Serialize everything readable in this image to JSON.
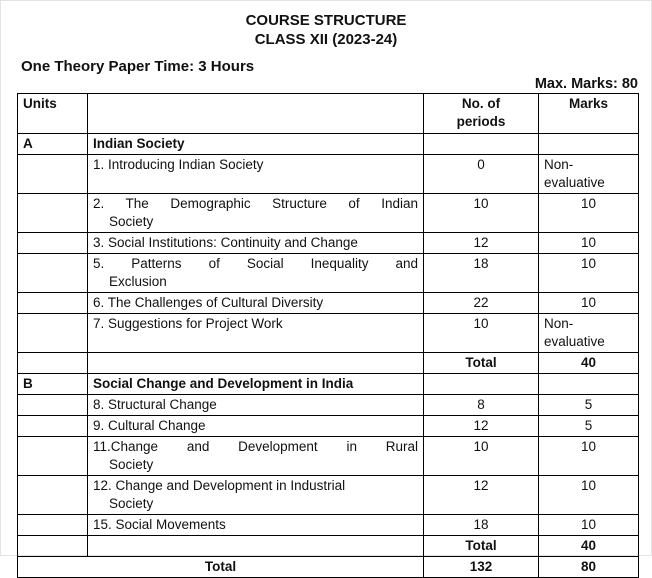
{
  "page": {
    "title_line1": "COURSE STRUCTURE",
    "title_line2": "CLASS XII (2023-24)",
    "paper_info": "One Theory Paper Time: 3 Hours",
    "max_marks": "Max. Marks: 80"
  },
  "colors": {
    "text": "#111111",
    "border": "#000000",
    "background": "#ffffff"
  },
  "table": {
    "headers": {
      "units": "Units",
      "topic": "",
      "periods": "No. of\nperiods",
      "marks": "Marks"
    },
    "rows": [
      {
        "type": "section",
        "unit": "A",
        "title": "Indian Society"
      },
      {
        "type": "item",
        "lines": [
          "1. Introducing Indian Society"
        ],
        "justify": false,
        "periods": "0",
        "marks": "Non-evaluative",
        "marks_wrap": true
      },
      {
        "type": "item",
        "lines": [
          "2. The Demographic Structure of Indian",
          "Society"
        ],
        "justify": true,
        "periods": "10",
        "marks": "10"
      },
      {
        "type": "item",
        "lines": [
          "3. Social Institutions: Continuity and Change"
        ],
        "justify": false,
        "periods": "12",
        "marks": "10"
      },
      {
        "type": "item",
        "lines": [
          "5. Patterns of Social Inequality and",
          "Exclusion"
        ],
        "justify": true,
        "periods": "18",
        "marks": "10"
      },
      {
        "type": "item",
        "lines": [
          "6. The Challenges of Cultural Diversity"
        ],
        "justify": false,
        "periods": "22",
        "marks": "10"
      },
      {
        "type": "item",
        "lines": [
          "7. Suggestions for Project Work"
        ],
        "justify": false,
        "periods": "10",
        "marks": "Non-evaluative",
        "marks_wrap": true
      },
      {
        "type": "subtotal",
        "label": "Total",
        "marks": "40"
      },
      {
        "type": "section",
        "unit": "B",
        "title": "Social Change and Development in India"
      },
      {
        "type": "item",
        "lines": [
          "8. Structural Change"
        ],
        "justify": false,
        "periods": "8",
        "marks": "5"
      },
      {
        "type": "item",
        "lines": [
          "9. Cultural Change"
        ],
        "justify": false,
        "periods": "12",
        "marks": "5"
      },
      {
        "type": "item",
        "lines": [
          "11.Change and Development in Rural",
          "Society"
        ],
        "justify": true,
        "periods": "10",
        "marks": "10"
      },
      {
        "type": "item",
        "lines": [
          "12. Change and Development in Industrial",
          "Society"
        ],
        "justify": false,
        "periods": "12",
        "marks": "10"
      },
      {
        "type": "item",
        "lines": [
          "15. Social Movements"
        ],
        "justify": false,
        "periods": "18",
        "marks": "10"
      },
      {
        "type": "subtotal",
        "label": "Total",
        "marks": "40"
      },
      {
        "type": "grandtotal",
        "label": "Total",
        "periods": "132",
        "marks": "80"
      }
    ]
  }
}
